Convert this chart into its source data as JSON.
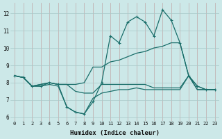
{
  "xlabel": "Humidex (Indice chaleur)",
  "bg_color": "#cce8e8",
  "grid_color_v": "#c0a8a8",
  "grid_color_h": "#a8c8c8",
  "line_color": "#1a6e6a",
  "xlim": [
    -0.5,
    23.5
  ],
  "ylim": [
    5.8,
    12.6
  ],
  "yticks": [
    6,
    7,
    8,
    9,
    10,
    11,
    12
  ],
  "xticks": [
    0,
    1,
    2,
    3,
    4,
    5,
    6,
    7,
    8,
    9,
    10,
    11,
    12,
    13,
    14,
    15,
    16,
    17,
    18,
    19,
    20,
    21,
    22,
    23
  ],
  "series1_x": [
    0,
    1,
    2,
    3,
    4,
    5,
    6,
    7,
    8,
    9,
    10,
    11,
    12,
    13,
    14,
    15,
    16,
    17,
    18,
    19,
    20,
    21,
    22,
    23
  ],
  "series1_y": [
    8.4,
    8.3,
    7.8,
    7.8,
    8.0,
    7.9,
    6.6,
    6.3,
    6.2,
    6.9,
    8.0,
    10.7,
    10.3,
    11.5,
    11.8,
    11.5,
    10.7,
    12.2,
    11.6,
    10.3,
    8.4,
    7.8,
    7.6,
    7.6
  ],
  "series2_x": [
    0,
    1,
    2,
    3,
    4,
    5,
    6,
    7,
    8,
    9,
    10,
    11,
    12,
    13,
    14,
    15,
    16,
    17,
    18,
    19,
    20,
    21,
    22,
    23
  ],
  "series2_y": [
    8.4,
    8.3,
    7.8,
    7.9,
    8.0,
    7.9,
    7.9,
    7.9,
    8.0,
    8.9,
    8.9,
    9.2,
    9.3,
    9.5,
    9.7,
    9.8,
    10.0,
    10.1,
    10.3,
    10.3,
    8.4,
    7.8,
    7.6,
    7.6
  ],
  "series3_x": [
    0,
    1,
    2,
    3,
    4,
    5,
    6,
    7,
    8,
    9,
    10,
    11,
    12,
    13,
    14,
    15,
    16,
    17,
    18,
    19,
    20,
    21,
    22,
    23
  ],
  "series3_y": [
    8.4,
    8.3,
    7.8,
    7.9,
    8.0,
    7.9,
    7.9,
    7.5,
    7.4,
    7.4,
    7.9,
    7.9,
    7.9,
    7.9,
    7.9,
    7.9,
    7.7,
    7.7,
    7.7,
    7.7,
    8.4,
    7.6,
    7.6,
    7.6
  ],
  "series4_x": [
    0,
    1,
    2,
    3,
    4,
    5,
    6,
    7,
    8,
    9,
    10,
    11,
    12,
    13,
    14,
    15,
    16,
    17,
    18,
    19,
    20,
    21,
    22,
    23
  ],
  "series4_y": [
    8.4,
    8.3,
    7.8,
    7.8,
    7.9,
    7.8,
    6.6,
    6.3,
    6.2,
    7.1,
    7.4,
    7.5,
    7.6,
    7.6,
    7.7,
    7.6,
    7.6,
    7.6,
    7.6,
    7.6,
    8.4,
    7.6,
    7.6,
    7.6
  ]
}
